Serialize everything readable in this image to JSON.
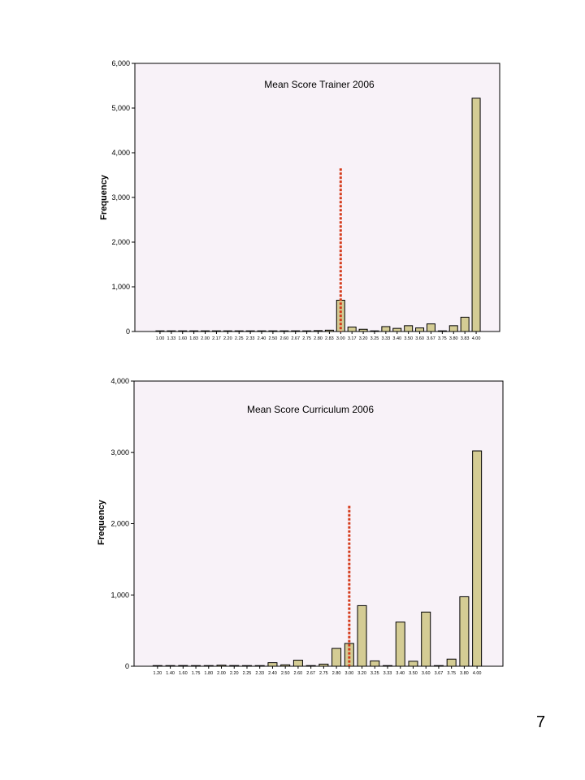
{
  "page_number": "7",
  "chart_data": [
    {
      "type": "bar",
      "title": "Mean Score Trainer 2006",
      "xlabel": "",
      "ylabel": "Frequency",
      "ylim": [
        0,
        6000
      ],
      "yticks": [
        0,
        1000,
        2000,
        3000,
        4000,
        5000,
        6000
      ],
      "ytick_labels": [
        "0",
        "1,000",
        "2,000",
        "3,000",
        "4,000",
        "5,000",
        "6,000"
      ],
      "categories": [
        "1.00",
        "1.33",
        "1.60",
        "1.83",
        "2.00",
        "2.17",
        "2.20",
        "2.25",
        "2.33",
        "2.40",
        "2.50",
        "2.60",
        "2.67",
        "2.75",
        "2.80",
        "2.83",
        "3.00",
        "3.17",
        "3.20",
        "3.25",
        "3.33",
        "3.40",
        "3.50",
        "3.60",
        "3.67",
        "3.75",
        "3.80",
        "3.83",
        "4.00"
      ],
      "values": [
        2,
        2,
        2,
        2,
        2,
        2,
        2,
        2,
        2,
        2,
        5,
        5,
        15,
        5,
        20,
        30,
        700,
        100,
        50,
        10,
        110,
        70,
        130,
        80,
        170,
        5,
        130,
        320,
        5220
      ],
      "reference_line": {
        "x_category": "3.00",
        "y_top": 3650,
        "color": "#d43a1a",
        "style": "dotted"
      },
      "bar_color": "#d4cc94",
      "background_color": "#f8f2f8",
      "grid": false,
      "legend": "none"
    },
    {
      "type": "bar",
      "title": "Mean Score Curriculum 2006",
      "xlabel": "",
      "ylabel": "Frequency",
      "ylim": [
        0,
        4000
      ],
      "yticks": [
        0,
        1000,
        2000,
        3000,
        4000
      ],
      "ytick_labels": [
        "0",
        "1,000",
        "2,000",
        "3,000",
        "4,000"
      ],
      "categories": [
        "1.20",
        "1.40",
        "1.60",
        "1.75",
        "1.80",
        "2.00",
        "2.20",
        "2.25",
        "2.33",
        "2.40",
        "2.50",
        "2.60",
        "2.67",
        "2.75",
        "2.80",
        "3.00",
        "3.20",
        "3.25",
        "3.33",
        "3.40",
        "3.50",
        "3.60",
        "3.67",
        "3.75",
        "3.80",
        "4.00"
      ],
      "values": [
        2,
        2,
        10,
        2,
        5,
        15,
        10,
        2,
        2,
        50,
        20,
        85,
        2,
        30,
        250,
        320,
        850,
        75,
        2,
        620,
        70,
        760,
        2,
        100,
        975,
        3020
      ],
      "reference_line": {
        "x_category": "3.00",
        "y_top": 2250,
        "color": "#d43a1a",
        "style": "dotted"
      },
      "bar_color": "#d4cc94",
      "background_color": "#f8f2f8",
      "grid": false,
      "legend": "none"
    }
  ]
}
